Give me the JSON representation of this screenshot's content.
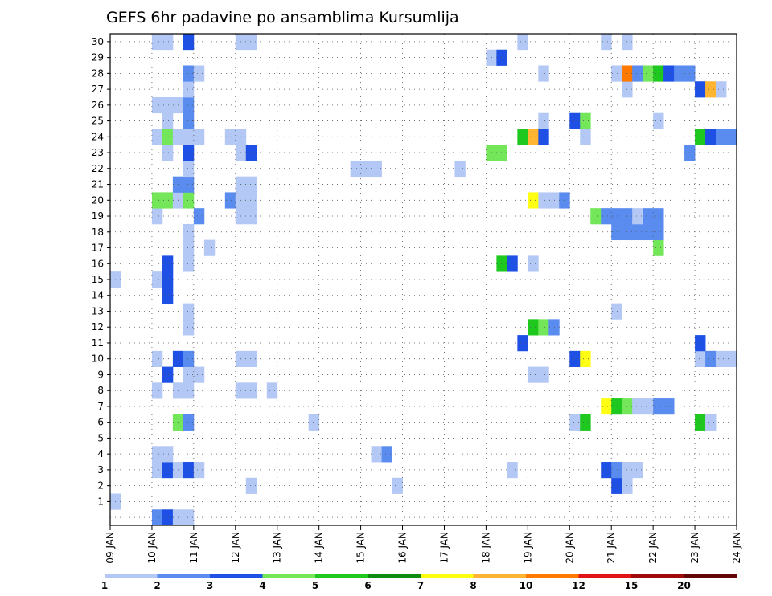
{
  "chart_data": {
    "type": "heatmap",
    "title": "GEFS 6hr padavine po ansamblima Kursumlija",
    "x_tick_labels": [
      "09 JAN",
      "10 JAN",
      "11 JAN",
      "12 JAN",
      "13 JAN",
      "14 JAN",
      "15 JAN",
      "16 JAN",
      "17 JAN",
      "18 JAN",
      "19 JAN",
      "20 JAN",
      "21 JAN",
      "22 JAN",
      "23 JAN",
      "24 JAN"
    ],
    "x_range_days": [
      0,
      15
    ],
    "y_tick_labels": [
      "1",
      "2",
      "3",
      "4",
      "5",
      "6",
      "7",
      "8",
      "9",
      "10",
      "11",
      "12",
      "13",
      "14",
      "15",
      "16",
      "17",
      "18",
      "19",
      "20",
      "21",
      "22",
      "23",
      "24",
      "25",
      "26",
      "27",
      "28",
      "29",
      "30"
    ],
    "y_range": [
      0,
      30
    ],
    "grid": "dotted",
    "colorbar": {
      "position": "bottom",
      "labels": [
        "1",
        "2",
        "3",
        "4",
        "5",
        "6",
        "7",
        "8",
        "10",
        "12",
        "15",
        "20"
      ],
      "colors": [
        "#b4c8f5",
        "#5a8cf0",
        "#1e50e6",
        "#73e65a",
        "#1ec81e",
        "#0f8c0f",
        "#ffff14",
        "#ffb432",
        "#ff7800",
        "#e11414",
        "#a00a0a",
        "#640505"
      ]
    },
    "cells": [
      {
        "x": 1.0,
        "m": 0,
        "c": 2
      },
      {
        "x": 1.25,
        "m": 0,
        "c": 3
      },
      {
        "x": 1.5,
        "m": 0,
        "c": 1
      },
      {
        "x": 1.75,
        "m": 0,
        "c": 1
      },
      {
        "x": 0.0,
        "m": 1,
        "c": 1
      },
      {
        "x": 0.0,
        "m": -1,
        "c": 1
      },
      {
        "x": 3.25,
        "m": 2,
        "c": 1
      },
      {
        "x": 6.75,
        "m": 2,
        "c": 1
      },
      {
        "x": 12.0,
        "m": 2,
        "c": 3
      },
      {
        "x": 12.25,
        "m": 2,
        "c": 1
      },
      {
        "x": 1.0,
        "m": 3,
        "c": 1
      },
      {
        "x": 1.25,
        "m": 3,
        "c": 3
      },
      {
        "x": 1.5,
        "m": 3,
        "c": 1
      },
      {
        "x": 1.75,
        "m": 3,
        "c": 3
      },
      {
        "x": 2.0,
        "m": 3,
        "c": 1
      },
      {
        "x": 9.5,
        "m": 3,
        "c": 1
      },
      {
        "x": 11.75,
        "m": 3,
        "c": 3
      },
      {
        "x": 12.0,
        "m": 3,
        "c": 2
      },
      {
        "x": 12.25,
        "m": 3,
        "c": 1
      },
      {
        "x": 12.5,
        "m": 3,
        "c": 1
      },
      {
        "x": 1.0,
        "m": 4,
        "c": 1
      },
      {
        "x": 1.25,
        "m": 4,
        "c": 1
      },
      {
        "x": 6.25,
        "m": 4,
        "c": 1
      },
      {
        "x": 6.5,
        "m": 4,
        "c": 2
      },
      {
        "x": 1.5,
        "m": 6,
        "c": 4
      },
      {
        "x": 1.75,
        "m": 6,
        "c": 2
      },
      {
        "x": 4.75,
        "m": 6,
        "c": 1
      },
      {
        "x": 11.0,
        "m": 6,
        "c": 1
      },
      {
        "x": 11.25,
        "m": 6,
        "c": 5
      },
      {
        "x": 14.0,
        "m": 6,
        "c": 5
      },
      {
        "x": 14.25,
        "m": 6,
        "c": 1
      },
      {
        "x": 11.75,
        "m": 7,
        "c": 7
      },
      {
        "x": 12.0,
        "m": 7,
        "c": 5
      },
      {
        "x": 12.25,
        "m": 7,
        "c": 4
      },
      {
        "x": 12.5,
        "m": 7,
        "c": 1
      },
      {
        "x": 12.75,
        "m": 7,
        "c": 1
      },
      {
        "x": 13.0,
        "m": 7,
        "c": 2
      },
      {
        "x": 13.25,
        "m": 7,
        "c": 2
      },
      {
        "x": 1.0,
        "m": 8,
        "c": 1
      },
      {
        "x": 1.5,
        "m": 8,
        "c": 1
      },
      {
        "x": 1.75,
        "m": 8,
        "c": 1
      },
      {
        "x": 3.0,
        "m": 8,
        "c": 1
      },
      {
        "x": 3.25,
        "m": 8,
        "c": 1
      },
      {
        "x": 3.75,
        "m": 8,
        "c": 1
      },
      {
        "x": 1.25,
        "m": 9,
        "c": 3
      },
      {
        "x": 1.75,
        "m": 9,
        "c": 1
      },
      {
        "x": 2.0,
        "m": 9,
        "c": 1
      },
      {
        "x": 10.0,
        "m": 9,
        "c": 1
      },
      {
        "x": 10.25,
        "m": 9,
        "c": 1
      },
      {
        "x": 1.0,
        "m": 10,
        "c": 1
      },
      {
        "x": 1.5,
        "m": 10,
        "c": 3
      },
      {
        "x": 1.75,
        "m": 10,
        "c": 2
      },
      {
        "x": 3.0,
        "m": 10,
        "c": 1
      },
      {
        "x": 3.25,
        "m": 10,
        "c": 1
      },
      {
        "x": 11.0,
        "m": 10,
        "c": 3
      },
      {
        "x": 11.25,
        "m": 10,
        "c": 7
      },
      {
        "x": 14.0,
        "m": 10,
        "c": 1
      },
      {
        "x": 14.25,
        "m": 10,
        "c": 2
      },
      {
        "x": 14.5,
        "m": 10,
        "c": 1
      },
      {
        "x": 14.75,
        "m": 10,
        "c": 1
      },
      {
        "x": 9.75,
        "m": 11,
        "c": 3
      },
      {
        "x": 14.0,
        "m": 11,
        "c": 3
      },
      {
        "x": 1.75,
        "m": 12,
        "c": 1
      },
      {
        "x": 10.0,
        "m": 12,
        "c": 5
      },
      {
        "x": 10.25,
        "m": 12,
        "c": 4
      },
      {
        "x": 10.5,
        "m": 12,
        "c": 2
      },
      {
        "x": 1.75,
        "m": 13,
        "c": 1
      },
      {
        "x": 12.0,
        "m": 13,
        "c": 1
      },
      {
        "x": 1.25,
        "m": 14,
        "c": 3
      },
      {
        "x": 0.0,
        "m": 15,
        "c": 1
      },
      {
        "x": 1.0,
        "m": 15,
        "c": 1
      },
      {
        "x": 1.25,
        "m": 15,
        "c": 3
      },
      {
        "x": 1.25,
        "m": 16,
        "c": 3
      },
      {
        "x": 1.75,
        "m": 16,
        "c": 1
      },
      {
        "x": 9.25,
        "m": 16,
        "c": 5
      },
      {
        "x": 9.5,
        "m": 16,
        "c": 3
      },
      {
        "x": 10.0,
        "m": 16,
        "c": 1
      },
      {
        "x": 1.75,
        "m": 17,
        "c": 1
      },
      {
        "x": 2.25,
        "m": 17,
        "c": 1
      },
      {
        "x": 13.0,
        "m": 17,
        "c": 4
      },
      {
        "x": 1.75,
        "m": 18,
        "c": 1
      },
      {
        "x": 12.0,
        "m": 18,
        "c": 2
      },
      {
        "x": 12.25,
        "m": 18,
        "c": 2
      },
      {
        "x": 12.5,
        "m": 18,
        "c": 2
      },
      {
        "x": 12.75,
        "m": 18,
        "c": 2
      },
      {
        "x": 13.0,
        "m": 18,
        "c": 2
      },
      {
        "x": 1.0,
        "m": 19,
        "c": 1
      },
      {
        "x": 2.0,
        "m": 19,
        "c": 2
      },
      {
        "x": 3.0,
        "m": 19,
        "c": 1
      },
      {
        "x": 3.25,
        "m": 19,
        "c": 1
      },
      {
        "x": 11.5,
        "m": 19,
        "c": 4
      },
      {
        "x": 11.75,
        "m": 19,
        "c": 2
      },
      {
        "x": 12.0,
        "m": 19,
        "c": 2
      },
      {
        "x": 12.25,
        "m": 19,
        "c": 2
      },
      {
        "x": 12.5,
        "m": 19,
        "c": 1
      },
      {
        "x": 12.75,
        "m": 19,
        "c": 2
      },
      {
        "x": 13.0,
        "m": 19,
        "c": 2
      },
      {
        "x": 1.0,
        "m": 20,
        "c": 4
      },
      {
        "x": 1.25,
        "m": 20,
        "c": 4
      },
      {
        "x": 1.5,
        "m": 20,
        "c": 1
      },
      {
        "x": 1.75,
        "m": 20,
        "c": 4
      },
      {
        "x": 2.75,
        "m": 20,
        "c": 2
      },
      {
        "x": 3.0,
        "m": 20,
        "c": 1
      },
      {
        "x": 3.25,
        "m": 20,
        "c": 1
      },
      {
        "x": 10.0,
        "m": 20,
        "c": 7
      },
      {
        "x": 10.25,
        "m": 20,
        "c": 1
      },
      {
        "x": 10.5,
        "m": 20,
        "c": 1
      },
      {
        "x": 10.75,
        "m": 20,
        "c": 2
      },
      {
        "x": 1.5,
        "m": 21,
        "c": 2
      },
      {
        "x": 1.75,
        "m": 21,
        "c": 2
      },
      {
        "x": 3.0,
        "m": 21,
        "c": 1
      },
      {
        "x": 3.25,
        "m": 21,
        "c": 1
      },
      {
        "x": 1.75,
        "m": 22,
        "c": 1
      },
      {
        "x": 5.75,
        "m": 22,
        "c": 1
      },
      {
        "x": 6.0,
        "m": 22,
        "c": 1
      },
      {
        "x": 6.25,
        "m": 22,
        "c": 1
      },
      {
        "x": 8.25,
        "m": 22,
        "c": 1
      },
      {
        "x": 1.25,
        "m": 23,
        "c": 1
      },
      {
        "x": 1.75,
        "m": 23,
        "c": 3
      },
      {
        "x": 3.0,
        "m": 23,
        "c": 1
      },
      {
        "x": 3.25,
        "m": 23,
        "c": 3
      },
      {
        "x": 9.0,
        "m": 23,
        "c": 4
      },
      {
        "x": 9.25,
        "m": 23,
        "c": 4
      },
      {
        "x": 13.75,
        "m": 23,
        "c": 2
      },
      {
        "x": 1.0,
        "m": 24,
        "c": 1
      },
      {
        "x": 1.25,
        "m": 24,
        "c": 4
      },
      {
        "x": 1.5,
        "m": 24,
        "c": 1
      },
      {
        "x": 1.75,
        "m": 24,
        "c": 1
      },
      {
        "x": 2.0,
        "m": 24,
        "c": 1
      },
      {
        "x": 2.75,
        "m": 24,
        "c": 1
      },
      {
        "x": 3.0,
        "m": 24,
        "c": 1
      },
      {
        "x": 9.75,
        "m": 24,
        "c": 5
      },
      {
        "x": 10.0,
        "m": 24,
        "c": 8
      },
      {
        "x": 10.25,
        "m": 24,
        "c": 3
      },
      {
        "x": 11.25,
        "m": 24,
        "c": 1
      },
      {
        "x": 14.0,
        "m": 24,
        "c": 5
      },
      {
        "x": 14.25,
        "m": 24,
        "c": 3
      },
      {
        "x": 14.5,
        "m": 24,
        "c": 2
      },
      {
        "x": 14.75,
        "m": 24,
        "c": 2
      },
      {
        "x": 1.25,
        "m": 25,
        "c": 1
      },
      {
        "x": 1.75,
        "m": 25,
        "c": 2
      },
      {
        "x": 10.25,
        "m": 25,
        "c": 1
      },
      {
        "x": 11.0,
        "m": 25,
        "c": 3
      },
      {
        "x": 11.25,
        "m": 25,
        "c": 4
      },
      {
        "x": 13.0,
        "m": 25,
        "c": 1
      },
      {
        "x": 1.0,
        "m": 26,
        "c": 1
      },
      {
        "x": 1.25,
        "m": 26,
        "c": 1
      },
      {
        "x": 1.5,
        "m": 26,
        "c": 1
      },
      {
        "x": 1.75,
        "m": 26,
        "c": 2
      },
      {
        "x": 1.75,
        "m": 27,
        "c": 1
      },
      {
        "x": 12.25,
        "m": 27,
        "c": 1
      },
      {
        "x": 14.0,
        "m": 27,
        "c": 3
      },
      {
        "x": 14.25,
        "m": 27,
        "c": 8
      },
      {
        "x": 14.5,
        "m": 27,
        "c": 1
      },
      {
        "x": 1.75,
        "m": 28,
        "c": 2
      },
      {
        "x": 2.0,
        "m": 28,
        "c": 1
      },
      {
        "x": 10.25,
        "m": 28,
        "c": 1
      },
      {
        "x": 12.0,
        "m": 28,
        "c": 1
      },
      {
        "x": 12.25,
        "m": 28,
        "c": 9
      },
      {
        "x": 12.5,
        "m": 28,
        "c": 2
      },
      {
        "x": 12.75,
        "m": 28,
        "c": 4
      },
      {
        "x": 13.0,
        "m": 28,
        "c": 5
      },
      {
        "x": 13.25,
        "m": 28,
        "c": 3
      },
      {
        "x": 13.5,
        "m": 28,
        "c": 2
      },
      {
        "x": 13.75,
        "m": 28,
        "c": 2
      },
      {
        "x": 9.0,
        "m": 29,
        "c": 1
      },
      {
        "x": 9.25,
        "m": 29,
        "c": 3
      },
      {
        "x": 1.0,
        "m": 30,
        "c": 1
      },
      {
        "x": 1.25,
        "m": 30,
        "c": 1
      },
      {
        "x": 1.75,
        "m": 30,
        "c": 3
      },
      {
        "x": 3.0,
        "m": 30,
        "c": 1
      },
      {
        "x": 3.25,
        "m": 30,
        "c": 1
      },
      {
        "x": 9.75,
        "m": 30,
        "c": 1
      },
      {
        "x": 11.75,
        "m": 30,
        "c": 1
      },
      {
        "x": 12.25,
        "m": 30,
        "c": 1
      }
    ]
  }
}
